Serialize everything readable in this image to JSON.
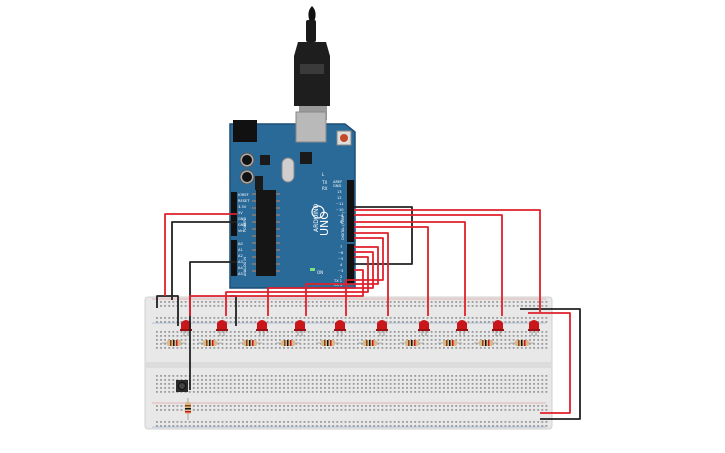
{
  "board": {
    "brand": "ARDUINO",
    "model": "UNO",
    "on_label": "ON",
    "tx_label": "TX",
    "rx_label": "RX",
    "l_label": "L",
    "power_pins": [
      "IOREF",
      "RESET",
      "3.3V",
      "5V",
      "GND",
      "GND",
      "Vin"
    ],
    "analog_pins": [
      "A0",
      "A1",
      "A2",
      "A3",
      "A4",
      "A5"
    ],
    "digital_pins": [
      "AREF",
      "GND",
      "13",
      "12",
      "~11",
      "~10",
      "~9",
      "8",
      "7",
      "~6",
      "~5",
      "4",
      "~3",
      "2",
      "TX 1",
      "RX 0"
    ],
    "digital_header": "DIGITAL (PWM~)",
    "power_header": "POWER",
    "analog_header": "ANALOG IN"
  },
  "colors": {
    "board": "#2a6a99",
    "board_edge": "#1d4f75",
    "wire_red": "#e0212b",
    "wire_black": "#222222",
    "breadboard": "#e8e8e8",
    "led": "#c8161b",
    "usb": "#222222"
  },
  "parts": {
    "led_count": 10,
    "resistor_count": 11,
    "pushbutton_count": 1
  }
}
